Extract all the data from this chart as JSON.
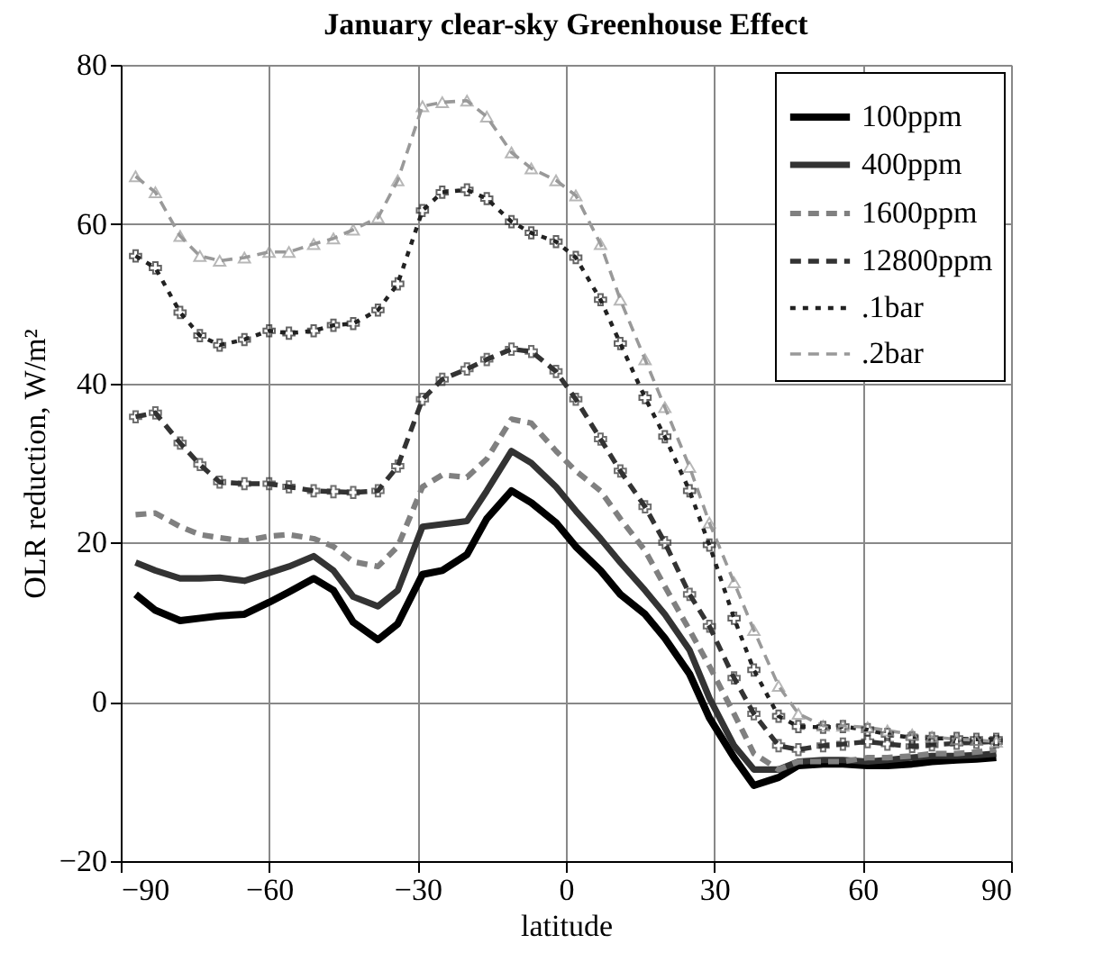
{
  "chart_data": {
    "type": "line",
    "title": "January clear-sky Greenhouse Effect",
    "xlabel": "latitude",
    "ylabel": "OLR reduction, W/m²",
    "x": [
      -87,
      -83,
      -78,
      -74,
      -70,
      -65,
      -60,
      -56,
      -51,
      -47,
      -43,
      -38,
      -34,
      -29,
      -25,
      -20,
      -16,
      -11,
      -7,
      -2,
      2,
      7,
      11,
      16,
      20,
      25,
      29,
      34,
      38,
      43,
      47,
      52,
      56,
      61,
      65,
      70,
      74,
      79,
      83,
      87
    ],
    "series": [
      {
        "name": "100ppm",
        "color": "#000000",
        "line_style": "solid",
        "values": [
          13.5,
          11.5,
          10.2,
          10.5,
          10.8,
          11,
          12.5,
          13.8,
          15.5,
          14,
          10,
          7.8,
          9.8,
          16,
          16.5,
          18.5,
          23,
          26.5,
          25,
          22.5,
          19.5,
          16.5,
          13.5,
          11,
          8,
          3.5,
          -2,
          -7,
          -10.5,
          -9.5,
          -8,
          -7.8,
          -7.8,
          -8,
          -8,
          -7.8,
          -7.5,
          -7.3,
          -7.2,
          -7
        ]
      },
      {
        "name": "400ppm",
        "color": "#333333",
        "line_style": "solid",
        "values": [
          17.5,
          16.5,
          15.5,
          15.5,
          15.6,
          15.2,
          16.2,
          17,
          18.3,
          16.5,
          13.2,
          12,
          14,
          22,
          22.3,
          22.7,
          26.5,
          31.5,
          30,
          27,
          24,
          20.5,
          17.5,
          14,
          11,
          6.5,
          0.5,
          -5.5,
          -8.5,
          -8.5,
          -7.5,
          -7.3,
          -7.3,
          -7.5,
          -7.3,
          -7,
          -6.8,
          -6.8,
          -6.7,
          -6.5
        ]
      },
      {
        "name": "1600ppm",
        "color": "#808080",
        "line_style": "dashed",
        "values": [
          23.5,
          23.7,
          22,
          21,
          20.6,
          20.2,
          20.8,
          21,
          20.5,
          19.5,
          17.6,
          17,
          19.5,
          27,
          28.5,
          28.2,
          30.5,
          35.5,
          35,
          31.5,
          29,
          26.5,
          23,
          19,
          14.5,
          9,
          4.5,
          -1.5,
          -6.5,
          -8.5,
          -7.5,
          -7.5,
          -7.5,
          -7,
          -7,
          -6.8,
          -6.5,
          -6.5,
          -6.3,
          -6
        ]
      },
      {
        "name": "12800ppm",
        "color": "#333333",
        "line_style": "dashed",
        "marker": "cross",
        "values": [
          35.8,
          36.3,
          32.5,
          29.8,
          27.6,
          27.4,
          27.4,
          27,
          26.5,
          26.4,
          26.3,
          26.5,
          29.6,
          38,
          40.5,
          41.8,
          43,
          44.3,
          44,
          41.5,
          38,
          33,
          29,
          24.5,
          20,
          13.5,
          9.5,
          3,
          -1.5,
          -5.5,
          -6,
          -5.5,
          -5.3,
          -5,
          -5.3,
          -5.6,
          -5.4,
          -5.2,
          -5.1,
          -5
        ]
      },
      {
        "name": ".1bar",
        "color": "#222222",
        "line_style": "dotted",
        "marker": "cross",
        "values": [
          56,
          54.5,
          48.9,
          46,
          44.8,
          45.5,
          46.6,
          46.3,
          46.6,
          47.3,
          47.5,
          49.2,
          52.5,
          61.7,
          64,
          64.3,
          63.2,
          60.3,
          58.9,
          57.8,
          55.8,
          50.5,
          45,
          38.2,
          33.3,
          26.5,
          19.7,
          10.5,
          4,
          -1.8,
          -3.1,
          -3.2,
          -3.1,
          -3.5,
          -4.1,
          -4.5,
          -4.6,
          -4.6,
          -4.7,
          -4.7
        ]
      },
      {
        "name": ".2bar",
        "color": "#999999",
        "line_style": "dashed",
        "marker": "triangle",
        "values": [
          66,
          64,
          58.5,
          56,
          55.4,
          55.8,
          56.5,
          56.5,
          57.5,
          58.2,
          59.3,
          60.8,
          65.5,
          74.8,
          75.3,
          75.5,
          73.5,
          69,
          67,
          65.5,
          63.6,
          57.5,
          50.5,
          43,
          37,
          29.5,
          22.5,
          15,
          9,
          2,
          -1.5,
          -3,
          -3,
          -3.2,
          -3.6,
          -4.1,
          -4.4,
          -4.7,
          -4.8,
          -5
        ]
      }
    ],
    "xlim": [
      -90,
      90
    ],
    "xticks": [
      -90,
      -60,
      -30,
      0,
      30,
      60,
      90
    ],
    "ylim": [
      -20,
      80
    ],
    "yticks": [
      -20,
      0,
      20,
      40,
      60,
      80
    ],
    "grid": true,
    "legend": "top right"
  }
}
